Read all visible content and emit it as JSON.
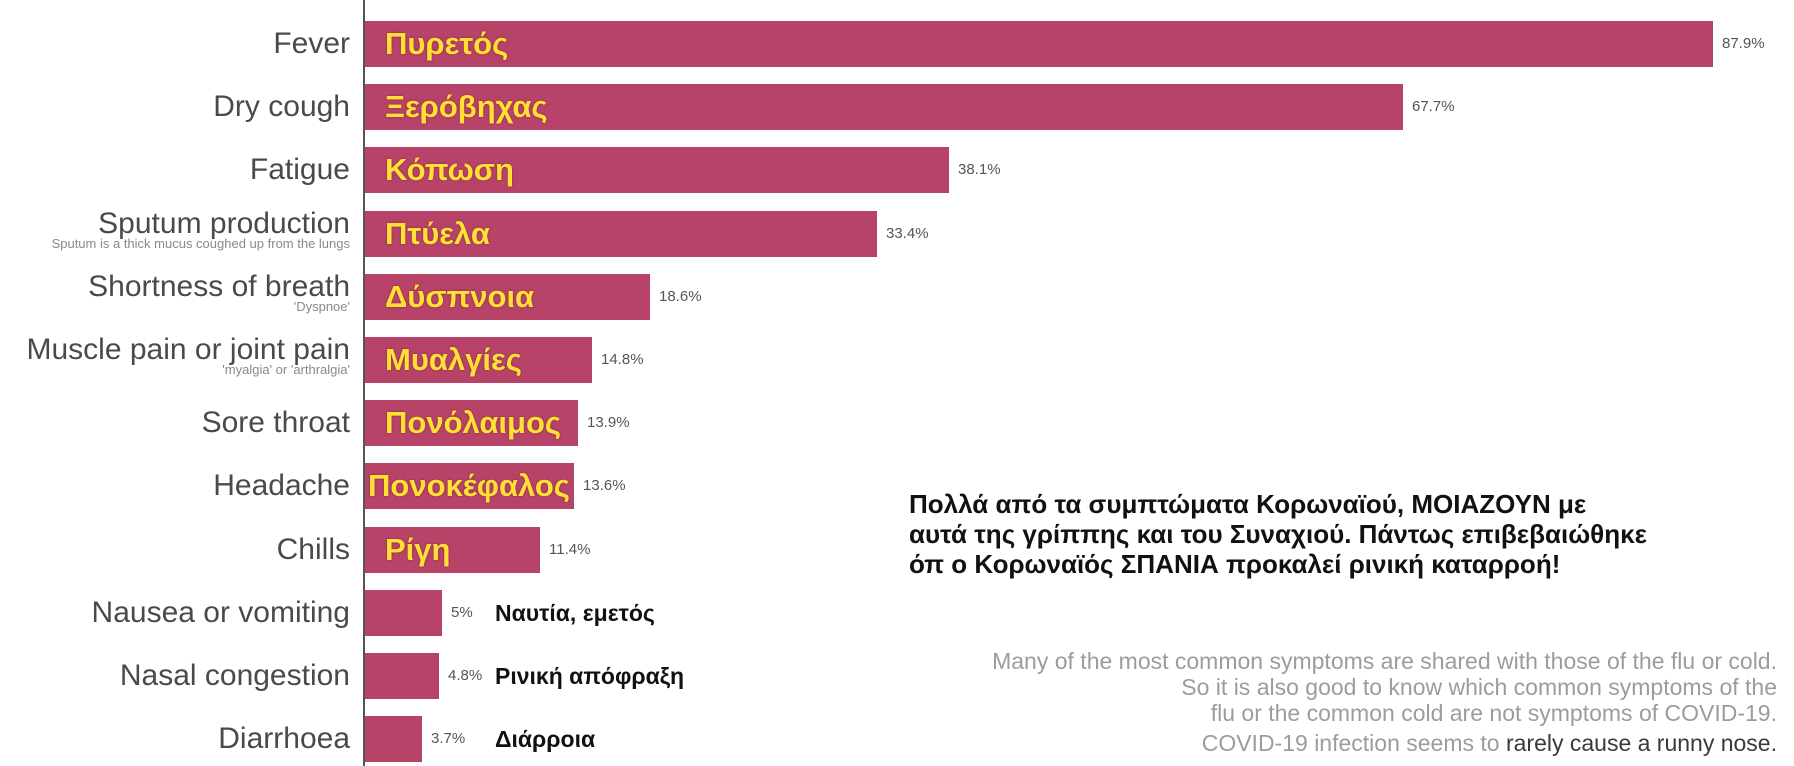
{
  "chart_data": {
    "type": "bar",
    "horizontal": true,
    "categories": [
      "Fever",
      "Dry cough",
      "Fatigue",
      "Sputum production",
      "Shortness of breath",
      "Muscle pain or joint pain",
      "Sore throat",
      "Headache",
      "Chills",
      "Nausea or vomiting",
      "Nasal congestion",
      "Diarrhoea"
    ],
    "values": [
      87.9,
      67.7,
      38.1,
      33.4,
      18.6,
      14.8,
      13.9,
      13.6,
      11.4,
      5,
      4.8,
      3.7
    ],
    "value_labels": [
      "87.9%",
      "67.7%",
      "38.1%",
      "33.4%",
      "18.6%",
      "14.8%",
      "13.9%",
      "13.6%",
      "11.4%",
      "5%",
      "4.8%",
      "3.7%"
    ],
    "greek_labels": [
      "Πυρετός",
      "Ξερόβηχας",
      "Κόπωση",
      "Πτύελα",
      "Δύσπνοια",
      "Μυαλγίες",
      "Πονόλαιμος",
      "Πονοκέφαλος",
      "Ρίγη",
      "Ναυτία, εμετός",
      "Ρινική απόφραξη",
      "Διάρροια"
    ],
    "category_notes": [
      {
        "index": 3,
        "text": "Sputum is a thick mucus coughed up from the lungs"
      },
      {
        "index": 4,
        "text": "'Dyspnoe'"
      },
      {
        "index": 5,
        "text": "'myalgia' or 'arthralgia'"
      }
    ],
    "xlim": [
      0,
      90
    ],
    "grid": false,
    "legend": false
  },
  "annotation": {
    "greek_lines": [
      "Πολλά από τα συμπτώματα Κορωναϊού, ΜΟΙΑΖΟΥΝ με",
      "αυτά της γρίππης και του Συναχιού. Πάντως επιβεβαιώθηκε",
      "όπ ο Κορωναϊός ΣΠΑΝΙΑ προκαλεί ρινική καταρροή!"
    ],
    "english_lines": [
      "Many of the most common symptoms are shared with those of the flu or cold.",
      "So it is also good to know which common symptoms of the",
      "flu or the common cold are not symptoms of COVID-19."
    ],
    "closing_line": {
      "lead": "COVID-19 infection seems to ",
      "emphasis": "rarely cause a runny nose."
    }
  },
  "colors": {
    "bar": "#B84369",
    "greek_on_bar": "#FFE033",
    "greek_beside_bar": "#111111",
    "axis": "#555555"
  }
}
